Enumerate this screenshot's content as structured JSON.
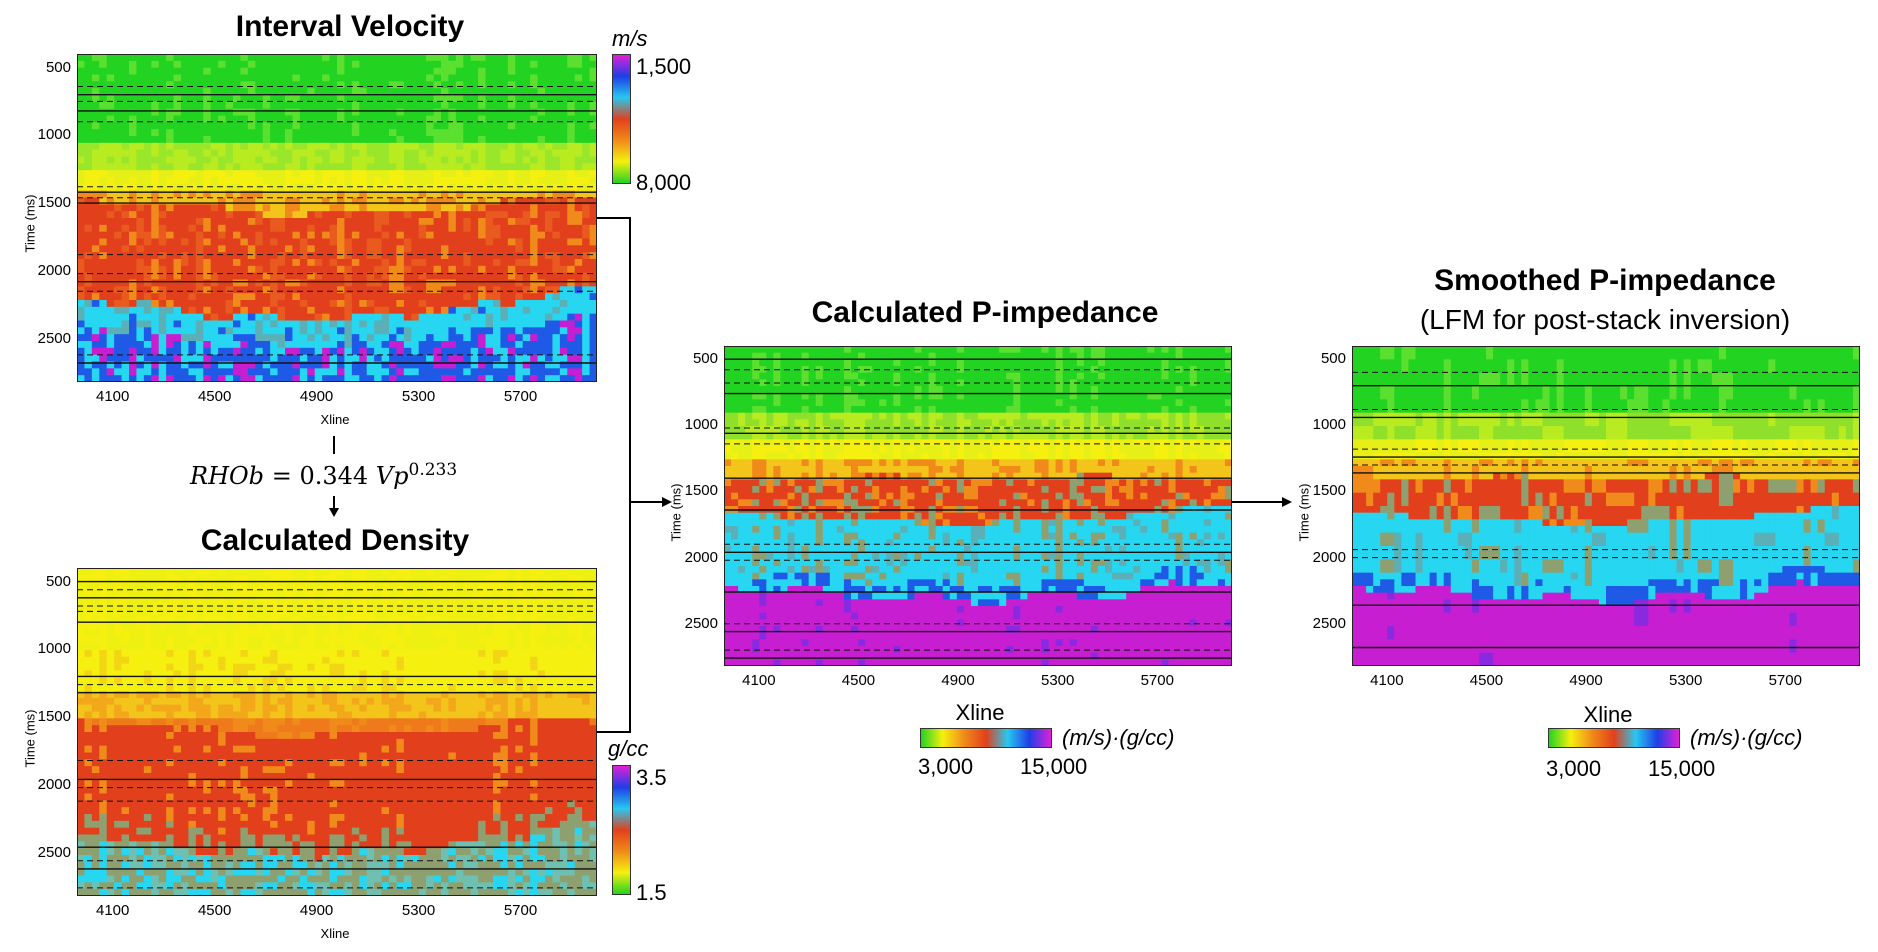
{
  "chart_data": [
    {
      "type": "heatmap",
      "title": "Interval Velocity",
      "xlabel": "Xline",
      "ylabel": "Time (ms)",
      "x_ticks": [
        "4100",
        "4500",
        "4900",
        "5300",
        "5700"
      ],
      "y_ticks": [
        "500",
        "1000",
        "1500",
        "2000",
        "2500"
      ],
      "xlim": [
        3960,
        6000
      ],
      "ylim": [
        400,
        2820
      ],
      "colorbar": {
        "unit": "m/s",
        "top": "1,500",
        "bottom": "8,000"
      }
    },
    {
      "type": "heatmap",
      "title": "Calculated Density",
      "xlabel": "Xline",
      "ylabel": "Time (ms)",
      "x_ticks": [
        "4100",
        "4500",
        "4900",
        "5300",
        "5700"
      ],
      "y_ticks": [
        "500",
        "1000",
        "1500",
        "2000",
        "2500"
      ],
      "xlim": [
        3960,
        6000
      ],
      "ylim": [
        400,
        2820
      ],
      "colorbar": {
        "unit": "g/cc",
        "top": "3.5",
        "bottom": "1.5"
      }
    },
    {
      "type": "heatmap",
      "title": "Calculated P-impedance",
      "xlabel": "Xline",
      "ylabel": "Time (ms)",
      "x_ticks": [
        "4100",
        "4500",
        "4900",
        "5300",
        "5700"
      ],
      "y_ticks": [
        "500",
        "1000",
        "1500",
        "2000",
        "2500"
      ],
      "xlim": [
        3960,
        6000
      ],
      "ylim": [
        400,
        2820
      ],
      "colorbar": {
        "unit": "(m/s)·(g/cc)",
        "left": "3,000",
        "right": "15,000"
      }
    },
    {
      "type": "heatmap",
      "title": "Smoothed P-impedance",
      "subtitle": "(LFM for post-stack inversion)",
      "xlabel": "Xline",
      "ylabel": "Time (ms)",
      "x_ticks": [
        "4100",
        "4500",
        "4900",
        "5300",
        "5700"
      ],
      "y_ticks": [
        "500",
        "1000",
        "1500",
        "2000",
        "2500"
      ],
      "xlim": [
        3960,
        6000
      ],
      "ylim": [
        400,
        2820
      ],
      "colorbar": {
        "unit": "(m/s)·(g/cc)",
        "left": "3,000",
        "right": "15,000"
      }
    }
  ],
  "formula": {
    "lhs": "RHOb",
    "eq": "=",
    "coef": "0.344",
    "base": "Vp",
    "exp": "0.233"
  },
  "colors": {
    "green": "#22d322",
    "yellow": "#f5f00f",
    "orange": "#f08a1a",
    "red": "#e2401c",
    "cyan": "#27d6f0",
    "blue": "#1f5ae6",
    "magenta": "#c81ed2",
    "olive": "#8fa070"
  }
}
